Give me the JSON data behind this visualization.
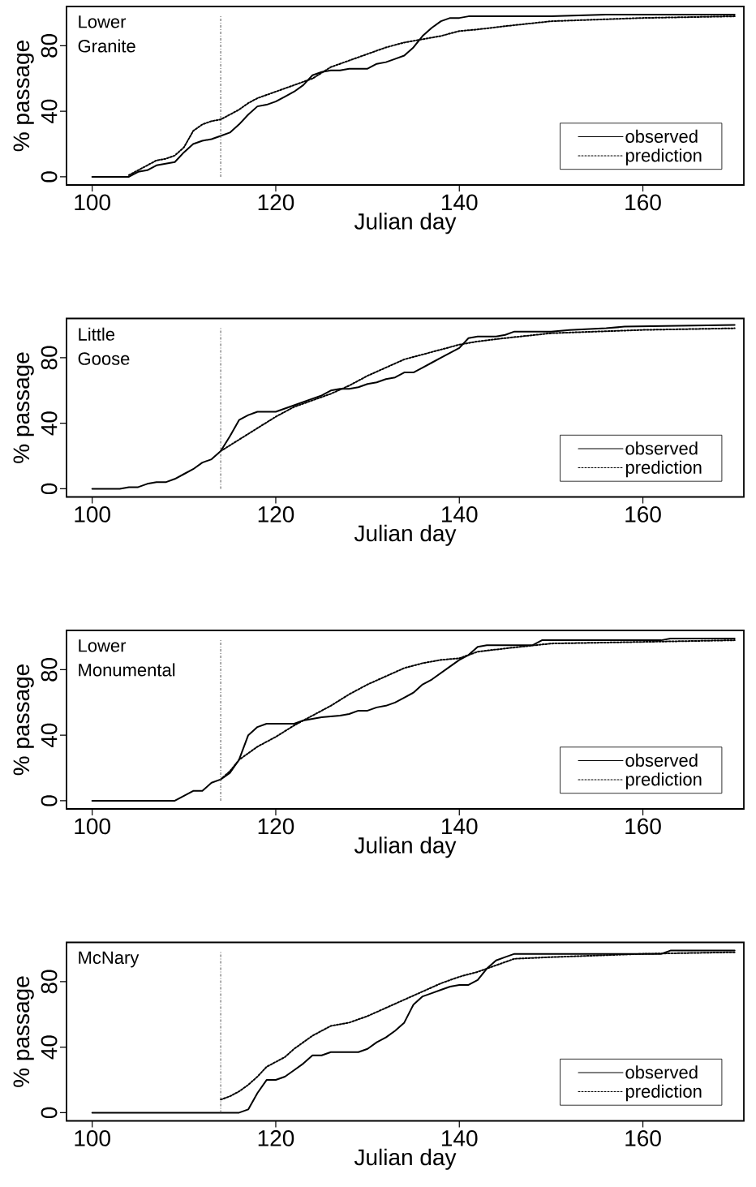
{
  "chart_data": [
    {
      "type": "line",
      "title": "Lower Granite",
      "xlabel": "Julian day",
      "ylabel": "% passage",
      "xlim": [
        97.2,
        171
      ],
      "ylim": [
        -5,
        104
      ],
      "xticks": [
        100,
        120,
        140,
        160
      ],
      "yticks": [
        0,
        40,
        80
      ],
      "legend": "bottom right",
      "ref_lines": [
        {
          "axis": "x",
          "value": 114,
          "color": "#555555",
          "line_style": "dashdot"
        }
      ],
      "series": [
        {
          "name": "observed",
          "color": "#000000",
          "line_style": "solid",
          "x": [
            100,
            104,
            105,
            106,
            107,
            109,
            110,
            111,
            112,
            113,
            114,
            115,
            116,
            117,
            118,
            119,
            120,
            121,
            122,
            123,
            124,
            125,
            126,
            127,
            128,
            130,
            131,
            132,
            133,
            134,
            135,
            136,
            137,
            138,
            139,
            140,
            141,
            150,
            156,
            170
          ],
          "values": [
            0,
            0,
            3,
            4,
            7,
            9,
            15,
            20,
            22,
            23,
            25,
            27,
            32,
            38,
            43,
            44,
            46,
            49,
            52,
            56,
            62,
            64,
            65,
            65,
            66,
            66,
            69,
            70,
            72,
            74,
            79,
            86,
            91,
            95,
            97,
            97,
            98,
            98,
            99,
            99
          ]
        },
        {
          "name": "prediction",
          "color": "#000000",
          "line_style": "dotted",
          "x": [
            104,
            105,
            106,
            107,
            108,
            109,
            110,
            111,
            112,
            113,
            114,
            115,
            116,
            117,
            118,
            120,
            122,
            124,
            126,
            128,
            130,
            132,
            134,
            136,
            138,
            140,
            142,
            145,
            150,
            160,
            170
          ],
          "values": [
            1,
            4,
            7,
            10,
            11,
            13,
            18,
            28,
            32,
            34,
            35,
            38,
            41,
            45,
            48,
            52,
            56,
            60,
            67,
            71,
            75,
            79,
            82,
            84,
            86,
            89,
            90,
            92,
            95,
            97,
            98
          ]
        }
      ]
    },
    {
      "type": "line",
      "title": "Little Goose",
      "xlabel": "Julian day",
      "ylabel": "% passage",
      "xlim": [
        97.2,
        171
      ],
      "ylim": [
        -5,
        104
      ],
      "xticks": [
        100,
        120,
        140,
        160
      ],
      "yticks": [
        0,
        40,
        80
      ],
      "legend": "bottom right",
      "ref_lines": [
        {
          "axis": "x",
          "value": 114,
          "color": "#555555",
          "line_style": "dashdot"
        }
      ],
      "series": [
        {
          "name": "observed",
          "color": "#000000",
          "line_style": "solid",
          "x": [
            100,
            103,
            104,
            105,
            106,
            107,
            108,
            109,
            110,
            111,
            112,
            113,
            114,
            115,
            116,
            117,
            118,
            120,
            122,
            124,
            125,
            126,
            127,
            128,
            129,
            130,
            131,
            132,
            133,
            134,
            135,
            136,
            137,
            138,
            139,
            140,
            141,
            142,
            144,
            145,
            146,
            150,
            152,
            156,
            158,
            170
          ],
          "values": [
            0,
            0,
            1,
            1,
            3,
            4,
            4,
            6,
            9,
            12,
            16,
            18,
            23,
            32,
            42,
            45,
            47,
            47,
            51,
            55,
            57,
            60,
            61,
            61,
            62,
            64,
            65,
            67,
            68,
            71,
            71,
            74,
            77,
            80,
            83,
            86,
            92,
            93,
            93,
            94,
            96,
            96,
            97,
            98,
            99,
            100
          ]
        },
        {
          "name": "prediction",
          "color": "#000000",
          "line_style": "dotted",
          "x": [
            114,
            116,
            118,
            120,
            122,
            124,
            126,
            128,
            130,
            132,
            134,
            136,
            138,
            140,
            142,
            145,
            150,
            160,
            170
          ],
          "values": [
            23,
            30,
            37,
            44,
            50,
            54,
            58,
            63,
            69,
            74,
            79,
            82,
            85,
            88,
            90,
            92,
            95,
            97,
            98
          ]
        }
      ]
    },
    {
      "type": "line",
      "title": "Lower Monumental",
      "xlabel": "Julian day",
      "ylabel": "% passage",
      "xlim": [
        97.2,
        171
      ],
      "ylim": [
        -5,
        104
      ],
      "xticks": [
        100,
        120,
        140,
        160
      ],
      "yticks": [
        0,
        40,
        80
      ],
      "legend": "bottom right",
      "ref_lines": [
        {
          "axis": "x",
          "value": 114,
          "color": "#555555",
          "line_style": "dashdot"
        }
      ],
      "series": [
        {
          "name": "observed",
          "color": "#000000",
          "line_style": "solid",
          "x": [
            100,
            109,
            110,
            111,
            112,
            113,
            114,
            115,
            116,
            117,
            118,
            119,
            122,
            123,
            125,
            127,
            128,
            129,
            130,
            131,
            132,
            133,
            134,
            135,
            136,
            137,
            138,
            139,
            140,
            141,
            142,
            143,
            148,
            149,
            162,
            163,
            170
          ],
          "values": [
            0,
            0,
            3,
            6,
            6,
            11,
            13,
            17,
            25,
            40,
            45,
            47,
            47,
            49,
            51,
            52,
            53,
            55,
            55,
            57,
            58,
            60,
            63,
            66,
            71,
            74,
            78,
            82,
            86,
            89,
            94,
            95,
            95,
            98,
            98,
            99,
            99
          ]
        },
        {
          "name": "prediction",
          "color": "#000000",
          "line_style": "dotted",
          "x": [
            114,
            115,
            116,
            117,
            118,
            120,
            122,
            124,
            126,
            128,
            130,
            132,
            134,
            136,
            138,
            140,
            142,
            145,
            150,
            160,
            170
          ],
          "values": [
            13,
            18,
            25,
            29,
            33,
            39,
            46,
            52,
            58,
            65,
            71,
            76,
            81,
            84,
            86,
            87,
            91,
            93,
            96,
            97,
            98
          ]
        }
      ]
    },
    {
      "type": "line",
      "title": "McNary",
      "xlabel": "Julian day",
      "ylabel": "% passage",
      "xlim": [
        97.2,
        171
      ],
      "ylim": [
        -5,
        104
      ],
      "xticks": [
        100,
        120,
        140,
        160
      ],
      "yticks": [
        0,
        40,
        80
      ],
      "legend": "bottom right",
      "ref_lines": [
        {
          "axis": "x",
          "value": 114,
          "color": "#555555",
          "line_style": "dashdot"
        }
      ],
      "series": [
        {
          "name": "observed",
          "color": "#000000",
          "line_style": "solid",
          "x": [
            100,
            116,
            117,
            118,
            119,
            120,
            121,
            122,
            123,
            124,
            125,
            126,
            129,
            130,
            131,
            132,
            133,
            134,
            135,
            136,
            137,
            138,
            139,
            140,
            141,
            142,
            143,
            144,
            145,
            146,
            162,
            163,
            170
          ],
          "values": [
            0,
            0,
            2,
            12,
            20,
            20,
            22,
            26,
            30,
            35,
            35,
            37,
            37,
            39,
            43,
            46,
            50,
            55,
            66,
            71,
            73,
            75,
            77,
            78,
            78,
            81,
            88,
            93,
            95,
            97,
            97,
            99,
            99
          ]
        },
        {
          "name": "prediction",
          "color": "#000000",
          "line_style": "dotted",
          "x": [
            114,
            115,
            116,
            117,
            118,
            119,
            120,
            121,
            122,
            123,
            124,
            125,
            126,
            127,
            128,
            130,
            132,
            134,
            136,
            138,
            140,
            142,
            144,
            146,
            150,
            160,
            170
          ],
          "values": [
            8,
            10,
            13,
            17,
            22,
            28,
            31,
            34,
            39,
            43,
            47,
            50,
            53,
            54,
            55,
            59,
            64,
            69,
            74,
            79,
            83,
            86,
            90,
            94,
            95,
            97,
            98
          ]
        }
      ]
    }
  ]
}
